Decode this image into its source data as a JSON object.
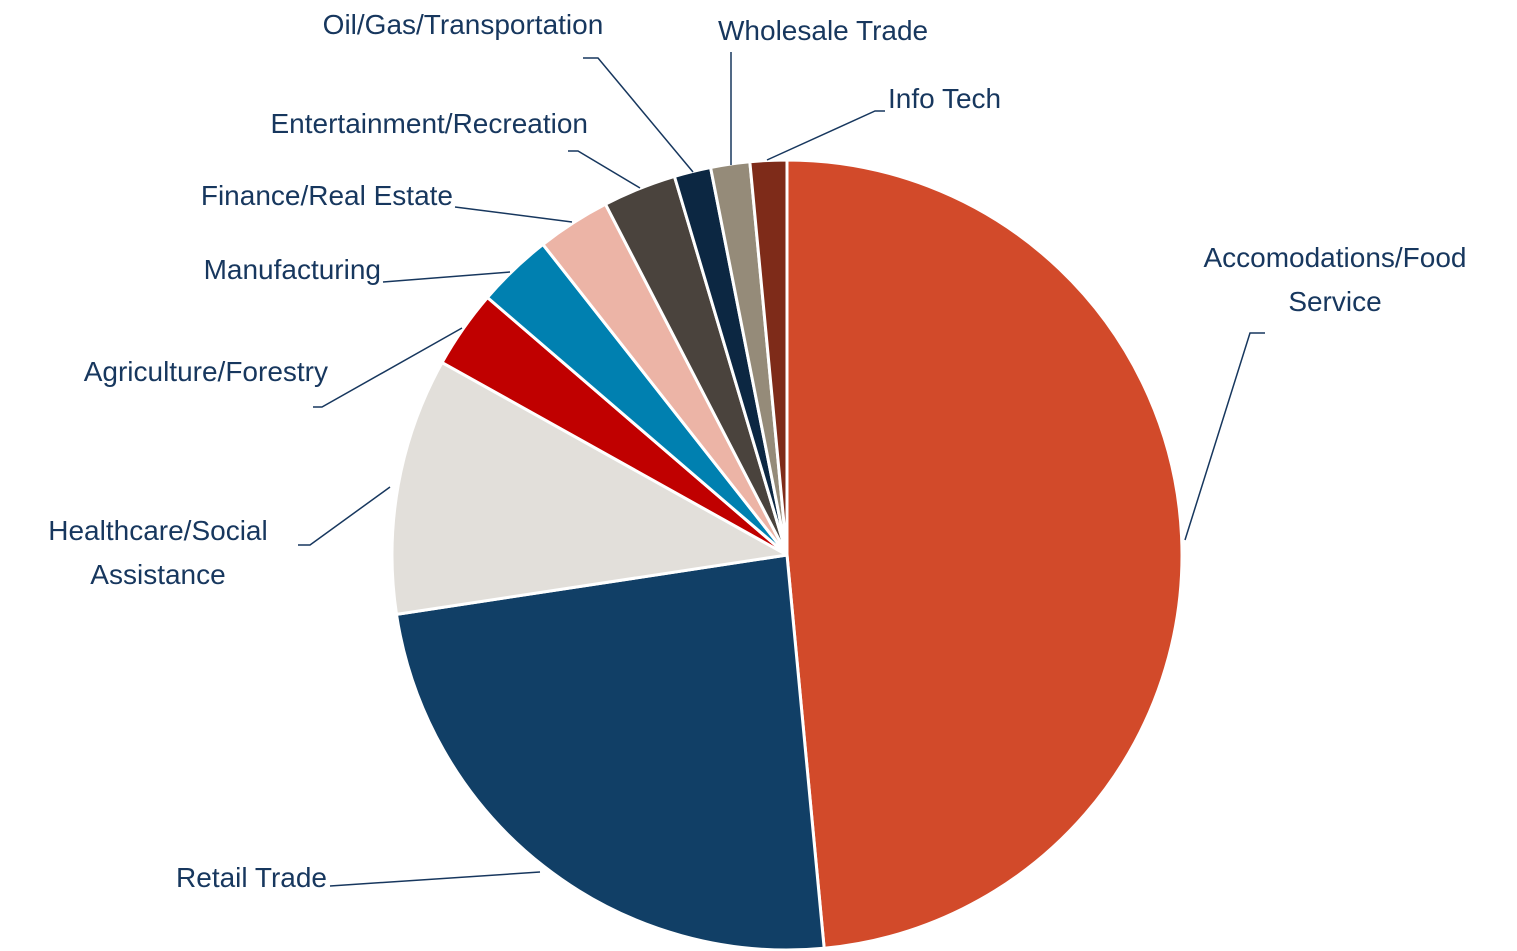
{
  "chart_data": {
    "type": "pie",
    "categories": [
      "Accomodations/Food Service",
      "Retail Trade",
      "Healthcare/Social Assistance",
      "Agriculture/Forestry",
      "Manufacturing",
      "Finance/Real Estate",
      "Entertainment/Recreation",
      "Oil/Gas/Transportation",
      "Wholesale Trade",
      "Info Tech"
    ],
    "values": [
      48.5,
      24.1,
      10.5,
      3.2,
      3.1,
      3.0,
      3.0,
      1.5,
      1.6,
      1.5
    ],
    "colors": [
      "#d24a2a",
      "#113f66",
      "#e2dfda",
      "#c00000",
      "#0080b0",
      "#ecb4a6",
      "#4a433d",
      "#0c2742",
      "#958b79",
      "#7e2b19"
    ]
  }
}
